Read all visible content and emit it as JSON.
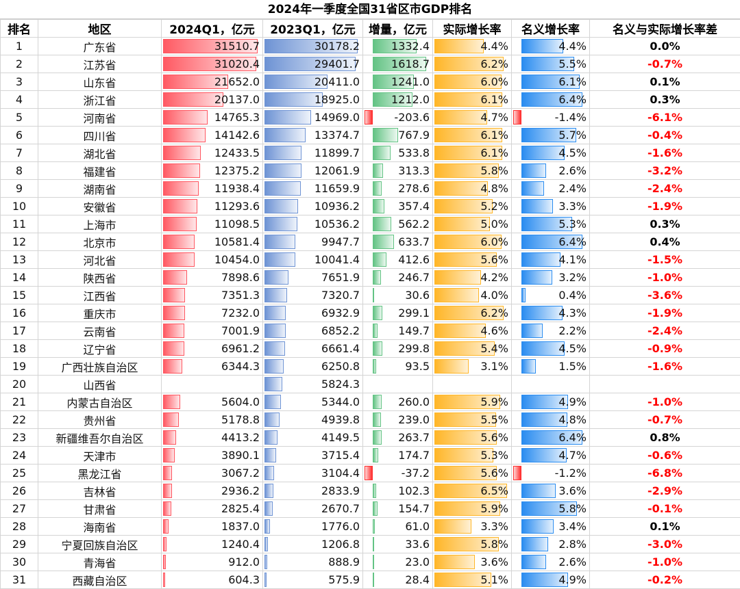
{
  "title": "2024年一季度全国31省区市GDP排名",
  "colors": {
    "gdp2024": "#ff5a63",
    "gdp2023": "#6e93d4",
    "increase": "#63c384",
    "real_growth": "#ffb628",
    "nominal_growth": "#2a8cf0",
    "negative_bar": "#ff3030",
    "negative_text": "#ff0000",
    "positive_text": "#000000"
  },
  "headers": [
    "排名",
    "地区",
    "2024Q1，亿元",
    "2023Q1，亿元",
    "增量，亿元",
    "实际增长率",
    "名义增长率",
    "名义与实际增长率差"
  ],
  "rows": [
    {
      "rank": "1",
      "region": "广东省",
      "gdp2024": "31510.7",
      "gdp2023": "30178.2",
      "increase": "1332.4",
      "real": "4.4%",
      "nominal": "4.4%",
      "diff": "0.0%"
    },
    {
      "rank": "2",
      "region": "江苏省",
      "gdp2024": "31020.4",
      "gdp2023": "29401.7",
      "increase": "1618.7",
      "real": "6.2%",
      "nominal": "5.5%",
      "diff": "-0.7%"
    },
    {
      "rank": "3",
      "region": "山东省",
      "gdp2024": "21652.0",
      "gdp2023": "20411.0",
      "increase": "1241.0",
      "real": "6.0%",
      "nominal": "6.1%",
      "diff": "0.1%"
    },
    {
      "rank": "4",
      "region": "浙江省",
      "gdp2024": "20137.0",
      "gdp2023": "18925.0",
      "increase": "1212.0",
      "real": "6.1%",
      "nominal": "6.4%",
      "diff": "0.3%"
    },
    {
      "rank": "5",
      "region": "河南省",
      "gdp2024": "14765.3",
      "gdp2023": "14969.0",
      "increase": "-203.6",
      "real": "4.7%",
      "nominal": "-1.4%",
      "diff": "-6.1%"
    },
    {
      "rank": "6",
      "region": "四川省",
      "gdp2024": "14142.6",
      "gdp2023": "13374.7",
      "increase": "767.9",
      "real": "6.1%",
      "nominal": "5.7%",
      "diff": "-0.4%"
    },
    {
      "rank": "7",
      "region": "湖北省",
      "gdp2024": "12433.5",
      "gdp2023": "11899.7",
      "increase": "533.8",
      "real": "6.1%",
      "nominal": "4.5%",
      "diff": "-1.6%"
    },
    {
      "rank": "8",
      "region": "福建省",
      "gdp2024": "12375.2",
      "gdp2023": "12061.9",
      "increase": "313.3",
      "real": "5.8%",
      "nominal": "2.6%",
      "diff": "-3.2%"
    },
    {
      "rank": "9",
      "region": "湖南省",
      "gdp2024": "11938.4",
      "gdp2023": "11659.9",
      "increase": "278.6",
      "real": "4.8%",
      "nominal": "2.4%",
      "diff": "-2.4%"
    },
    {
      "rank": "10",
      "region": "安徽省",
      "gdp2024": "11293.6",
      "gdp2023": "10936.2",
      "increase": "357.4",
      "real": "5.2%",
      "nominal": "3.3%",
      "diff": "-1.9%"
    },
    {
      "rank": "11",
      "region": "上海市",
      "gdp2024": "11098.5",
      "gdp2023": "10536.2",
      "increase": "562.2",
      "real": "5.0%",
      "nominal": "5.3%",
      "diff": "0.3%"
    },
    {
      "rank": "12",
      "region": "北京市",
      "gdp2024": "10581.4",
      "gdp2023": "9947.7",
      "increase": "633.7",
      "real": "6.0%",
      "nominal": "6.4%",
      "diff": "0.4%"
    },
    {
      "rank": "13",
      "region": "河北省",
      "gdp2024": "10454.0",
      "gdp2023": "10041.4",
      "increase": "412.6",
      "real": "5.6%",
      "nominal": "4.1%",
      "diff": "-1.5%"
    },
    {
      "rank": "14",
      "region": "陕西省",
      "gdp2024": "7898.6",
      "gdp2023": "7651.9",
      "increase": "246.7",
      "real": "4.2%",
      "nominal": "3.2%",
      "diff": "-1.0%"
    },
    {
      "rank": "15",
      "region": "江西省",
      "gdp2024": "7351.3",
      "gdp2023": "7320.7",
      "increase": "30.6",
      "real": "4.0%",
      "nominal": "0.4%",
      "diff": "-3.6%"
    },
    {
      "rank": "16",
      "region": "重庆市",
      "gdp2024": "7232.0",
      "gdp2023": "6932.9",
      "increase": "299.1",
      "real": "6.2%",
      "nominal": "4.3%",
      "diff": "-1.9%"
    },
    {
      "rank": "17",
      "region": "云南省",
      "gdp2024": "7001.9",
      "gdp2023": "6852.2",
      "increase": "149.7",
      "real": "4.6%",
      "nominal": "2.2%",
      "diff": "-2.4%"
    },
    {
      "rank": "18",
      "region": "辽宁省",
      "gdp2024": "6961.2",
      "gdp2023": "6661.4",
      "increase": "299.8",
      "real": "5.4%",
      "nominal": "4.5%",
      "diff": "-0.9%"
    },
    {
      "rank": "19",
      "region": "广西壮族自治区",
      "gdp2024": "6344.3",
      "gdp2023": "6250.8",
      "increase": "93.5",
      "real": "3.1%",
      "nominal": "1.5%",
      "diff": "-1.6%"
    },
    {
      "rank": "20",
      "region": "山西省",
      "gdp2024": "",
      "gdp2023": "5824.3",
      "increase": "",
      "real": "",
      "nominal": "",
      "diff": ""
    },
    {
      "rank": "21",
      "region": "内蒙古自治区",
      "gdp2024": "5604.0",
      "gdp2023": "5344.0",
      "increase": "260.0",
      "real": "5.9%",
      "nominal": "4.9%",
      "diff": "-1.0%"
    },
    {
      "rank": "22",
      "region": "贵州省",
      "gdp2024": "5178.8",
      "gdp2023": "4939.8",
      "increase": "239.0",
      "real": "5.5%",
      "nominal": "4.8%",
      "diff": "-0.7%"
    },
    {
      "rank": "23",
      "region": "新疆维吾尔自治区",
      "gdp2024": "4413.2",
      "gdp2023": "4149.5",
      "increase": "263.7",
      "real": "5.6%",
      "nominal": "6.4%",
      "diff": "0.8%"
    },
    {
      "rank": "24",
      "region": "天津市",
      "gdp2024": "3890.1",
      "gdp2023": "3715.4",
      "increase": "174.7",
      "real": "5.3%",
      "nominal": "4.7%",
      "diff": "-0.6%"
    },
    {
      "rank": "25",
      "region": "黑龙江省",
      "gdp2024": "3067.2",
      "gdp2023": "3104.4",
      "increase": "-37.2",
      "real": "5.6%",
      "nominal": "-1.2%",
      "diff": "-6.8%"
    },
    {
      "rank": "26",
      "region": "吉林省",
      "gdp2024": "2936.2",
      "gdp2023": "2833.9",
      "increase": "102.3",
      "real": "6.5%",
      "nominal": "3.6%",
      "diff": "-2.9%"
    },
    {
      "rank": "27",
      "region": "甘肃省",
      "gdp2024": "2825.4",
      "gdp2023": "2670.7",
      "increase": "154.7",
      "real": "5.9%",
      "nominal": "5.8%",
      "diff": "-0.1%"
    },
    {
      "rank": "28",
      "region": "海南省",
      "gdp2024": "1837.0",
      "gdp2023": "1776.0",
      "increase": "61.0",
      "real": "3.3%",
      "nominal": "3.4%",
      "diff": "0.1%"
    },
    {
      "rank": "29",
      "region": "宁夏回族自治区",
      "gdp2024": "1240.4",
      "gdp2023": "1206.8",
      "increase": "33.6",
      "real": "5.8%",
      "nominal": "2.8%",
      "diff": "-3.0%"
    },
    {
      "rank": "30",
      "region": "青海省",
      "gdp2024": "912.0",
      "gdp2023": "888.9",
      "increase": "23.0",
      "real": "3.6%",
      "nominal": "2.6%",
      "diff": "-1.0%"
    },
    {
      "rank": "31",
      "region": "西藏自治区",
      "gdp2024": "604.3",
      "gdp2023": "575.9",
      "increase": "28.4",
      "real": "5.1%",
      "nominal": "4.9%",
      "diff": "-0.2%"
    }
  ]
}
